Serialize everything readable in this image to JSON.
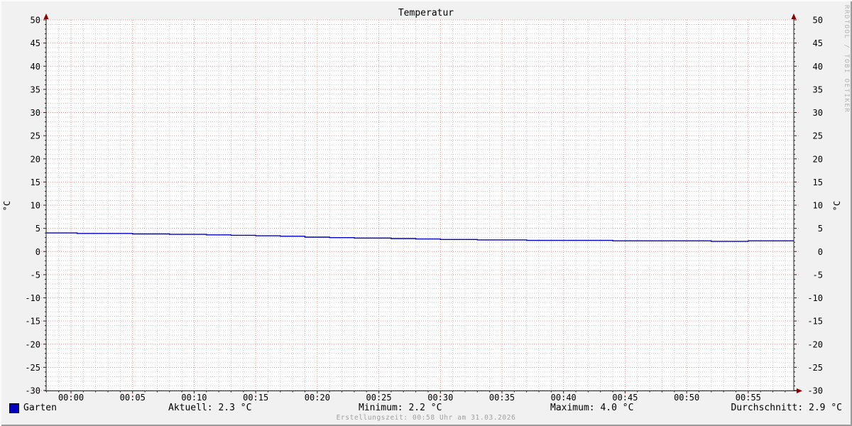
{
  "title": "Temperatur",
  "watermark": "RRDTOOL / TOBI OETIKER",
  "footer": "Erstellungszeit: 00:58 Uhr am 31.03.2026",
  "legend": {
    "series_label": "Garten",
    "current": "Aktuell: 2.3 °C",
    "minimum": "Minimum: 2.2 °C",
    "maximum": "Maximum: 4.0 °C",
    "average": "Durchschnitt: 2.9 °C"
  },
  "axis_units": {
    "left": "°C",
    "right": "°C"
  },
  "colors": {
    "background": "#f1f1f1",
    "canvas": "#ffffff",
    "major_grid": "#ee9090",
    "minor_grid": "#cccccc",
    "axis": "#222222",
    "arrow": "#8b0000",
    "series_garten": "#0000c0",
    "watermark": "#b3b3b3",
    "footer": "#a0a0a0"
  },
  "chart_data": {
    "type": "line",
    "title": "Temperatur",
    "ylabel": "°C",
    "ylim": [
      -30,
      50
    ],
    "y_ticks": [
      50,
      45,
      40,
      35,
      30,
      25,
      20,
      15,
      10,
      5,
      0,
      -5,
      -10,
      -15,
      -20,
      -25,
      -30
    ],
    "y_minor_step": 1,
    "x_range_min": [
      -2.02,
      58.7
    ],
    "x_minor_step_min": 1,
    "x_ticks": [
      {
        "t": 0,
        "label": "00:00"
      },
      {
        "t": 5,
        "label": "00:05"
      },
      {
        "t": 10,
        "label": "00:10"
      },
      {
        "t": 15,
        "label": "00:15"
      },
      {
        "t": 20,
        "label": "00:20"
      },
      {
        "t": 25,
        "label": "00:25"
      },
      {
        "t": 30,
        "label": "00:30"
      },
      {
        "t": 35,
        "label": "00:35"
      },
      {
        "t": 40,
        "label": "00:40"
      },
      {
        "t": 45,
        "label": "00:45"
      },
      {
        "t": 50,
        "label": "00:50"
      },
      {
        "t": 55,
        "label": "00:55"
      }
    ],
    "series": [
      {
        "name": "Garten",
        "color": "#0000c0",
        "interpolation": "step-after",
        "points_min_degC": [
          [
            -2.02,
            4.0
          ],
          [
            0.5,
            3.9
          ],
          [
            5,
            3.8
          ],
          [
            8,
            3.7
          ],
          [
            11,
            3.6
          ],
          [
            13,
            3.5
          ],
          [
            15,
            3.4
          ],
          [
            17,
            3.3
          ],
          [
            19,
            3.1
          ],
          [
            21,
            3.0
          ],
          [
            23,
            2.9
          ],
          [
            26,
            2.8
          ],
          [
            28,
            2.7
          ],
          [
            30,
            2.6
          ],
          [
            33,
            2.5
          ],
          [
            37,
            2.4
          ],
          [
            44,
            2.3
          ],
          [
            52,
            2.2
          ],
          [
            55,
            2.3
          ],
          [
            58.7,
            2.3
          ]
        ],
        "stats": {
          "current": 2.3,
          "minimum": 2.2,
          "maximum": 4.0,
          "average": 2.9
        }
      }
    ],
    "grid": "on",
    "legend_position": "bottom"
  }
}
